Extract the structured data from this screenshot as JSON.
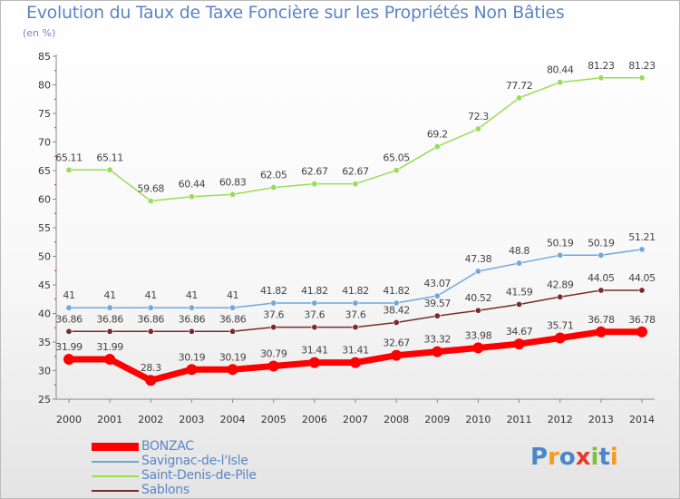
{
  "title": "Evolution du Taux de Taxe Foncière sur les Propriétés Non Bâties",
  "unit_label": "(en %)",
  "logo": {
    "text": "Proxiti"
  },
  "chart_data": {
    "type": "line",
    "title": "Evolution du Taux de Taxe Foncière sur les Propriétés Non Bâties",
    "ylabel": "(en %)",
    "xlabel": "",
    "x": [
      "2000",
      "2001",
      "2002",
      "2003",
      "2004",
      "2005",
      "2006",
      "2007",
      "2008",
      "2009",
      "2010",
      "2011",
      "2012",
      "2013",
      "2014"
    ],
    "ylim": [
      25,
      85
    ],
    "yticks": [
      25,
      30,
      35,
      40,
      45,
      50,
      55,
      60,
      65,
      70,
      75,
      80,
      85
    ],
    "grid": false,
    "legend_position": "bottom-left",
    "series": [
      {
        "name": "BONZAC",
        "color": "#ff0000",
        "emphasis": true,
        "values": [
          31.99,
          31.99,
          28.3,
          30.19,
          30.19,
          30.79,
          31.41,
          31.41,
          32.67,
          33.32,
          33.98,
          34.67,
          35.71,
          36.78,
          36.78
        ],
        "labels": [
          "31.99",
          "31.99",
          "28.3",
          "30.19",
          "30.19",
          "30.79",
          "31.41",
          "31.41",
          "32.67",
          "33.32",
          "33.98",
          "34.67",
          "35.71",
          "36.78",
          "36.78"
        ]
      },
      {
        "name": "Savignac-de-l'Isle",
        "color": "#6fa8dc",
        "values": [
          41,
          41,
          41,
          41,
          41,
          41.82,
          41.82,
          41.82,
          41.82,
          43.07,
          47.38,
          48.8,
          50.19,
          50.19,
          51.21
        ],
        "labels": [
          "41",
          "41",
          "41",
          "41",
          "41",
          "41.82",
          "41.82",
          "41.82",
          "41.82",
          "43.07",
          "47.38",
          "48.8",
          "50.19",
          "50.19",
          "51.21"
        ]
      },
      {
        "name": "Saint-Denis-de-Pile",
        "color": "#99dd55",
        "values": [
          65.11,
          65.11,
          59.68,
          60.44,
          60.83,
          62.05,
          62.67,
          62.67,
          65.05,
          69.2,
          72.3,
          77.72,
          80.44,
          81.23,
          81.23
        ],
        "labels": [
          "65.11",
          "65.11",
          "59.68",
          "60.44",
          "60.83",
          "62.05",
          "62.67",
          "62.67",
          "65.05",
          "69.2",
          "72.3",
          "77.72",
          "80.44",
          "81.23",
          "81.23"
        ]
      },
      {
        "name": "Sablons",
        "color": "#7a2a2a",
        "values": [
          36.86,
          36.86,
          36.86,
          36.86,
          36.86,
          37.6,
          37.6,
          37.6,
          38.42,
          39.57,
          40.52,
          41.59,
          42.89,
          44.05,
          44.05
        ],
        "labels": [
          "36.86",
          "36.86",
          "36.86",
          "36.86",
          "36.86",
          "37.6",
          "37.6",
          "37.6",
          "38.42",
          "39.57",
          "40.52",
          "41.59",
          "42.89",
          "44.05",
          "44.05"
        ]
      }
    ]
  },
  "colors": {
    "title": "#5a86c6",
    "axis": "#888888",
    "tick_text": "#333333",
    "value_text": "#444444"
  }
}
